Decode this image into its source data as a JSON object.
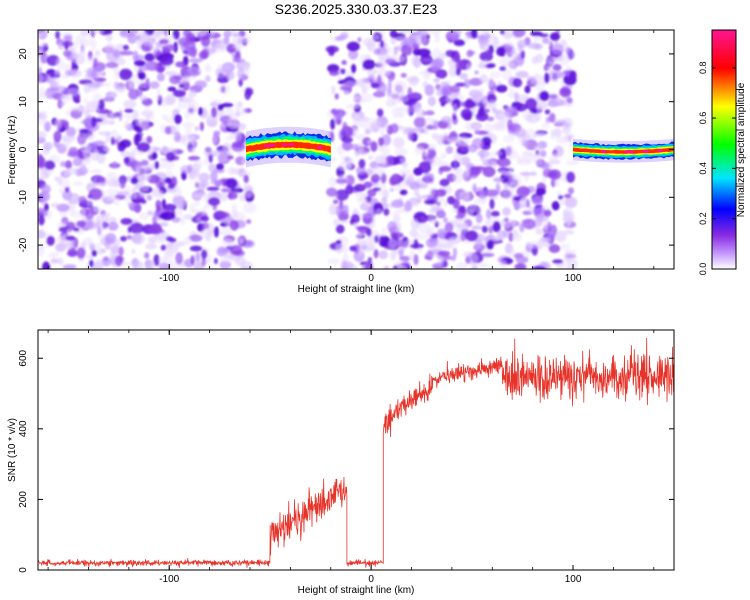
{
  "title": "S236.2025.330.03.37.E23",
  "chart_data": [
    {
      "type": "heatmap",
      "name": "spectrogram",
      "xlabel": "Height of straight line (km)",
      "ylabel": "Frequency (Hz)",
      "xlim": [
        -165,
        150
      ],
      "ylim": [
        -25,
        25
      ],
      "xticks": [
        -100,
        0,
        100
      ],
      "xtick_labels": [
        "-100",
        "0",
        "100"
      ],
      "yticks": [
        -20,
        -10,
        0,
        10,
        20
      ],
      "ytick_labels": [
        "-20",
        "-10",
        "0",
        "10",
        "20"
      ],
      "noise_regions": [
        [
          -165,
          -60
        ],
        [
          -20,
          100
        ]
      ],
      "signal_regions": [
        {
          "x": [
            -62,
            -20
          ],
          "center_hz": [
            0,
            2,
            0
          ],
          "half_width_hz": 2.5
        },
        {
          "x": [
            100,
            150
          ],
          "center_hz": [
            0,
            -1,
            0
          ],
          "half_width_hz": 1.5
        }
      ],
      "colorbar": {
        "label": "Normalized spectral amplitude",
        "range": [
          0,
          0.95
        ],
        "ticks": [
          0,
          0.2,
          0.4,
          0.6,
          0.8
        ],
        "tick_labels": [
          "0.0",
          "0.2",
          "0.4",
          "0.6",
          "0.8"
        ],
        "colors": [
          "#ffffff",
          "#8a2be2",
          "#0000ff",
          "#00e5ff",
          "#00ff00",
          "#ffff00",
          "#ff0000",
          "#ff1493"
        ]
      }
    },
    {
      "type": "line",
      "name": "snr",
      "xlabel": "Height of straight line (km)",
      "ylabel": "SNR (10 * v/v)",
      "xlim": [
        -165,
        150
      ],
      "ylim": [
        0,
        680
      ],
      "xticks": [
        -100,
        0,
        100
      ],
      "xtick_labels": [
        "-100",
        "0",
        "100"
      ],
      "yticks": [
        0,
        200,
        400,
        600
      ],
      "ytick_labels": [
        "0",
        "200",
        "400",
        "600"
      ],
      "color": "#e8332a",
      "segments": [
        {
          "x": [
            -165,
            -50
          ],
          "level": [
            20,
            20
          ],
          "noise": 8
        },
        {
          "x": [
            -50,
            -12
          ],
          "level": [
            100,
            230
          ],
          "noise": 45
        },
        {
          "x": [
            -12,
            6
          ],
          "level": [
            20,
            20
          ],
          "noise": 8
        },
        {
          "x": [
            6,
            10
          ],
          "level": [
            400,
            430
          ],
          "noise": 40
        },
        {
          "x": [
            10,
            30
          ],
          "level": [
            440,
            520
          ],
          "noise": 30
        },
        {
          "x": [
            30,
            65
          ],
          "level": [
            540,
            580
          ],
          "noise": 25
        },
        {
          "x": [
            65,
            150
          ],
          "level": [
            540,
            550
          ],
          "noise": 60
        }
      ]
    }
  ]
}
